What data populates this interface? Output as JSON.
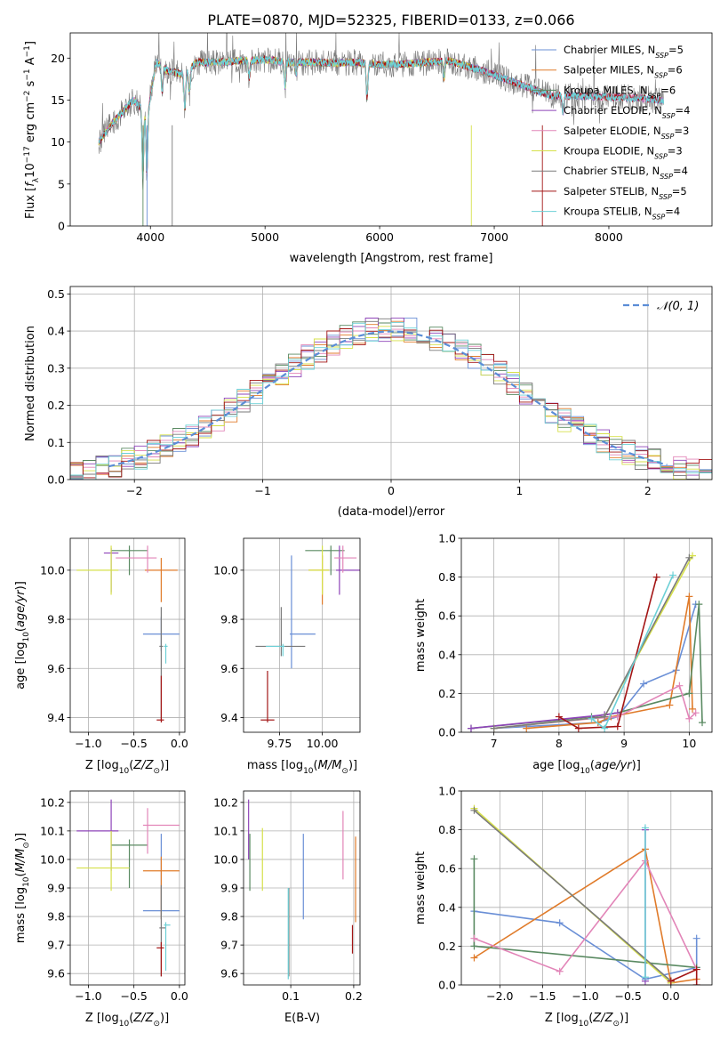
{
  "figure": {
    "title": "PLATE=0870, MJD=52325, FIBERID=0133, z=0.066"
  },
  "model_colors": [
    "#6a8fd6",
    "#e07b2a",
    "#5a8a62",
    "#8e44b8",
    "#e285b8",
    "#d6e04a",
    "#7a7a7a",
    "#a31515",
    "#6cd0d6"
  ],
  "model_legend_labels": [
    {
      "base": "Chabrier MILES, N",
      "sub": "SSP",
      "tail": "=5"
    },
    {
      "base": "Salpeter MILES, N",
      "sub": "SSP",
      "tail": "=6"
    },
    {
      "base": "Kroupa MILES, N",
      "sub": "SSP",
      "tail": "=6"
    },
    {
      "base": "Chabrier ELODIE, N",
      "sub": "SSP",
      "tail": "=4"
    },
    {
      "base": "Salpeter ELODIE, N",
      "sub": "SSP",
      "tail": "=3"
    },
    {
      "base": "Kroupa ELODIE, N",
      "sub": "SSP",
      "tail": "=3"
    },
    {
      "base": "Chabrier STELIB, N",
      "sub": "SSP",
      "tail": "=4"
    },
    {
      "base": "Salpeter STELIB, N",
      "sub": "SSP",
      "tail": "=5"
    },
    {
      "base": "Kroupa STELIB, N",
      "sub": "SSP",
      "tail": "=4"
    }
  ],
  "chart_data": [
    {
      "id": "spectrum",
      "type": "line",
      "xlabel": "wavelength [Angstrom, rest frame]",
      "ylabel": "Flux [f_λ 10^-17 erg cm^-2 s^-1 A^-1]",
      "xlim": [
        3300,
        8900
      ],
      "ylim": [
        0,
        23
      ],
      "xticks": [
        4000,
        5000,
        6000,
        7000,
        8000
      ],
      "yticks": [
        0,
        5,
        10,
        15,
        20
      ],
      "grid": false,
      "legend": "upper right",
      "continuum": {
        "x": [
          3550,
          3650,
          3750,
          3850,
          3930,
          3970,
          4050,
          4150,
          4300,
          4400,
          4600,
          4800,
          5000,
          5200,
          5400,
          5600,
          5800,
          6000,
          6200,
          6400,
          6600,
          6700,
          6800,
          6900,
          7000,
          7100,
          7200,
          7300,
          7400,
          7500,
          7700,
          7900,
          8100,
          8300,
          8450
        ],
        "y": [
          10,
          12,
          13.5,
          15,
          14,
          13,
          19.5,
          18.5,
          18,
          19.5,
          19.5,
          19.7,
          19.8,
          19.5,
          19.5,
          19.4,
          19.5,
          19.2,
          19.3,
          19.5,
          19.7,
          19.3,
          18.9,
          18.5,
          18.0,
          17.5,
          17.0,
          16.5,
          16.0,
          15.5,
          15.5,
          15.4,
          15.3,
          15.2,
          15.0
        ]
      },
      "absorption_features": [
        {
          "x": 3934,
          "depth": 8
        },
        {
          "x": 3969,
          "depth": 7
        },
        {
          "x": 4102,
          "depth": 3
        },
        {
          "x": 4300,
          "depth": 4
        },
        {
          "x": 4340,
          "depth": 3
        },
        {
          "x": 4861,
          "depth": 2
        },
        {
          "x": 5175,
          "depth": 3
        },
        {
          "x": 5270,
          "depth": 1.5
        },
        {
          "x": 5890,
          "depth": 4
        },
        {
          "x": 6563,
          "depth": 2
        },
        {
          "x": 7600,
          "depth": 2
        }
      ]
    },
    {
      "id": "residual_hist",
      "type": "histogram",
      "xlabel": "(data-model)/error",
      "ylabel": "Normed distribution",
      "xlim": [
        -2.5,
        2.5
      ],
      "ylim": [
        0,
        0.52
      ],
      "xticks": [
        -2,
        -1,
        0,
        1,
        2
      ],
      "yticks": [
        0.0,
        0.1,
        0.2,
        0.3,
        0.4,
        0.5
      ],
      "grid": true,
      "legend": "upper right",
      "reference_curve": {
        "name": "𝒩(0, 1)",
        "mu": 0,
        "sigma": 1
      },
      "bin_width": 0.1
    },
    {
      "id": "age_vs_Z",
      "type": "errorbar",
      "xlabel": "Z [log10(Z/Z⊙)]",
      "ylabel": "age [log10(age/yr)]",
      "xlim": [
        -1.2,
        0.06
      ],
      "ylim": [
        9.34,
        10.13
      ],
      "xticks": [
        -1.0,
        -0.5,
        0.0
      ],
      "yticks": [
        9.4,
        9.6,
        9.8,
        10.0
      ],
      "grid": true,
      "points": [
        {
          "x": -0.2,
          "xerr": [
            0.2,
            0.2
          ],
          "y": 9.74,
          "yerr": [
            0.07,
            0.07
          ]
        },
        {
          "x": -0.2,
          "xerr": [
            0.18,
            0.18
          ],
          "y": 10.0,
          "yerr": [
            0.13,
            0.05
          ]
        },
        {
          "x": -0.55,
          "xerr": [
            0.2,
            0.2
          ],
          "y": 10.08,
          "yerr": [
            0.1,
            0.02
          ]
        },
        {
          "x": -0.75,
          "xerr": [
            0.08,
            0.08
          ],
          "y": 10.07,
          "yerr": [
            0.16,
            0.02
          ]
        },
        {
          "x": -0.35,
          "xerr": [
            0.35,
            0.1
          ],
          "y": 10.05,
          "yerr": [
            0.06,
            0.05
          ]
        },
        {
          "x": -0.75,
          "xerr": [
            0.38,
            0.08
          ],
          "y": 10.0,
          "yerr": [
            0.1,
            0.1
          ]
        },
        {
          "x": -0.2,
          "xerr": [
            0.02,
            0.02
          ],
          "y": 9.69,
          "yerr": [
            0.3,
            0.16
          ]
        },
        {
          "x": -0.2,
          "xerr": [
            0.05,
            0.03
          ],
          "y": 9.39,
          "yerr": [
            0.01,
            0.18
          ]
        },
        {
          "x": -0.15,
          "xerr": [
            0.02,
            0.02
          ],
          "y": 9.69,
          "yerr": [
            0.07,
            0.01
          ]
        }
      ]
    },
    {
      "id": "age_vs_mass",
      "type": "errorbar",
      "xlabel": "mass [log10(M/M⊙)]",
      "ylabel": "",
      "xlim": [
        9.54,
        10.22
      ],
      "ylim": [
        9.34,
        10.13
      ],
      "xticks": [
        9.75,
        10.0
      ],
      "yticks": [
        9.4,
        9.6,
        9.8,
        10.0
      ],
      "grid": true,
      "points": [
        {
          "x": 9.82,
          "xerr": [
            0.01,
            0.14
          ],
          "y": 9.74,
          "yerr": [
            0.14,
            0.32
          ]
        },
        {
          "x": 10.0,
          "xerr": [
            0.08,
            0.04
          ],
          "y": 10.0,
          "yerr": [
            0.14,
            0.06
          ]
        },
        {
          "x": 10.05,
          "xerr": [
            0.15,
            0.08
          ],
          "y": 10.08,
          "yerr": [
            0.1,
            0.02
          ]
        },
        {
          "x": 10.1,
          "xerr": [
            0.02,
            0.12
          ],
          "y": 10.0,
          "yerr": [
            0.1,
            0.1
          ]
        },
        {
          "x": 10.12,
          "xerr": [
            0.05,
            0.08
          ],
          "y": 10.05,
          "yerr": [
            0.06,
            0.05
          ]
        },
        {
          "x": 10.0,
          "xerr": [
            0.08,
            0.04
          ],
          "y": 10.0,
          "yerr": [
            0.1,
            0.1
          ]
        },
        {
          "x": 9.76,
          "xerr": [
            0.15,
            0.14
          ],
          "y": 9.69,
          "yerr": [
            0.04,
            0.16
          ]
        },
        {
          "x": 9.68,
          "xerr": [
            0.04,
            0.04
          ],
          "y": 9.39,
          "yerr": [
            0.01,
            0.2
          ]
        },
        {
          "x": 9.77,
          "xerr": [
            0.1,
            0.01
          ],
          "y": 9.69,
          "yerr": [
            0.04,
            0.01
          ]
        }
      ]
    },
    {
      "id": "weight_vs_age",
      "type": "line",
      "xlabel": "age [log10(age/yr)]",
      "ylabel": "mass weight",
      "xlim": [
        6.5,
        10.35
      ],
      "ylim": [
        0,
        1.0
      ],
      "xticks": [
        7,
        8,
        9,
        10
      ],
      "yticks": [
        0.0,
        0.2,
        0.4,
        0.6,
        0.8,
        1.0
      ],
      "grid": true,
      "series": [
        {
          "x": [
            7.0,
            8.6,
            8.9,
            9.3,
            9.8,
            10.1
          ],
          "y": [
            0.02,
            0.05,
            0.08,
            0.25,
            0.32,
            0.66
          ]
        },
        {
          "x": [
            7.5,
            8.6,
            8.8,
            9.7,
            10.0,
            10.05
          ],
          "y": [
            0.02,
            0.05,
            0.08,
            0.14,
            0.7,
            0.12
          ]
        },
        {
          "x": [
            6.65,
            8.5,
            8.9,
            10.0,
            10.15,
            10.2
          ],
          "y": [
            0.02,
            0.08,
            0.1,
            0.2,
            0.66,
            0.05
          ]
        },
        {
          "x": [
            6.65,
            8.7,
            8.9
          ],
          "y": [
            0.02,
            0.09,
            0.1
          ]
        },
        {
          "x": [
            7.0,
            8.5,
            8.9,
            9.85,
            10.0,
            10.1
          ],
          "y": [
            0.02,
            0.07,
            0.08,
            0.24,
            0.07,
            0.1
          ]
        },
        {
          "x": [
            7.0,
            8.7,
            10.05
          ],
          "y": [
            0.02,
            0.08,
            0.91
          ]
        },
        {
          "x": [
            7.0,
            8.7,
            10.0
          ],
          "y": [
            0.02,
            0.08,
            0.9
          ]
        },
        {
          "x": [
            8.0,
            8.3,
            8.9,
            9.5
          ],
          "y": [
            0.08,
            0.02,
            0.03,
            0.8
          ]
        },
        {
          "x": [
            8.5,
            8.7,
            9.75
          ],
          "y": [
            0.07,
            0.02,
            0.81
          ]
        }
      ]
    },
    {
      "id": "mass_vs_Z",
      "type": "errorbar",
      "xlabel": "Z [log10(Z/Z⊙)]",
      "ylabel": "mass [log10(M/M⊙)]",
      "xlim": [
        -1.2,
        0.06
      ],
      "ylim": [
        9.56,
        10.24
      ],
      "xticks": [
        -1.0,
        -0.5,
        0.0
      ],
      "yticks": [
        9.6,
        9.7,
        9.8,
        9.9,
        10.0,
        10.1,
        10.2
      ],
      "grid": true,
      "points": [
        {
          "x": -0.2,
          "xerr": [
            0.2,
            0.2
          ],
          "y": 9.82,
          "yerr": [
            0.03,
            0.27
          ]
        },
        {
          "x": -0.2,
          "xerr": [
            0.2,
            0.2
          ],
          "y": 9.96,
          "yerr": [
            0.17,
            0.05
          ]
        },
        {
          "x": -0.55,
          "xerr": [
            0.2,
            0.2
          ],
          "y": 10.05,
          "yerr": [
            0.15,
            0.02
          ]
        },
        {
          "x": -0.75,
          "xerr": [
            0.38,
            0.08
          ],
          "y": 10.1,
          "yerr": [
            0.14,
            0.11
          ]
        },
        {
          "x": -0.35,
          "xerr": [
            0.05,
            0.35
          ],
          "y": 10.12,
          "yerr": [
            0.1,
            0.06
          ]
        },
        {
          "x": -0.75,
          "xerr": [
            0.38,
            0.2
          ],
          "y": 9.97,
          "yerr": [
            0.08,
            0.13
          ]
        },
        {
          "x": -0.2,
          "xerr": [
            0.02,
            0.05
          ],
          "y": 9.76,
          "yerr": [
            0.17,
            0.15
          ]
        },
        {
          "x": -0.2,
          "xerr": [
            0.05,
            0.03
          ],
          "y": 9.69,
          "yerr": [
            0.1,
            0.02
          ]
        },
        {
          "x": -0.15,
          "xerr": [
            0.02,
            0.05
          ],
          "y": 9.77,
          "yerr": [
            0.16,
            0.01
          ]
        }
      ]
    },
    {
      "id": "mass_vs_ebv",
      "type": "errorbar",
      "xlabel": "E(B-V)",
      "ylabel": "",
      "xlim": [
        0.025,
        0.21
      ],
      "ylim": [
        9.56,
        10.24
      ],
      "xticks": [
        0.1,
        0.2
      ],
      "yticks": [
        9.6,
        9.7,
        9.8,
        9.9,
        10.0,
        10.1,
        10.2
      ],
      "grid": true,
      "points": [
        {
          "x": 0.12,
          "xerr": [
            0,
            0
          ],
          "y": 9.94,
          "yerr": [
            0.15,
            0.15
          ]
        },
        {
          "x": 0.203,
          "xerr": [
            0,
            0
          ],
          "y": 9.93,
          "yerr": [
            0.15,
            0.15
          ]
        },
        {
          "x": 0.035,
          "xerr": [
            0,
            0
          ],
          "y": 9.99,
          "yerr": [
            0.1,
            0.1
          ]
        },
        {
          "x": 0.033,
          "xerr": [
            0,
            0
          ],
          "y": 10.1,
          "yerr": [
            0.1,
            0.11
          ]
        },
        {
          "x": 0.183,
          "xerr": [
            0,
            0
          ],
          "y": 10.05,
          "yerr": [
            0.12,
            0.12
          ]
        },
        {
          "x": 0.055,
          "xerr": [
            0,
            0
          ],
          "y": 10.0,
          "yerr": [
            0.11,
            0.11
          ]
        },
        {
          "x": 0.097,
          "xerr": [
            0,
            0
          ],
          "y": 9.75,
          "yerr": [
            0.16,
            0.15
          ]
        },
        {
          "x": 0.198,
          "xerr": [
            0,
            0
          ],
          "y": 9.72,
          "yerr": [
            0.05,
            0.05
          ]
        },
        {
          "x": 0.096,
          "xerr": [
            0,
            0
          ],
          "y": 9.74,
          "yerr": [
            0.16,
            0.16
          ]
        }
      ]
    },
    {
      "id": "weight_vs_Z",
      "type": "line",
      "xlabel": "Z [log10(Z/Z⊙)]",
      "ylabel": "mass weight",
      "xlim": [
        -2.45,
        0.48
      ],
      "ylim": [
        0,
        1.0
      ],
      "xticks": [
        -2.0,
        -1.5,
        -1.0,
        -0.5,
        0.0
      ],
      "yticks": [
        0.0,
        0.2,
        0.4,
        0.6,
        0.8,
        1.0
      ],
      "grid": true,
      "series": [
        {
          "x": [
            -2.3,
            -1.3,
            -0.3,
            0.3,
            0.3
          ],
          "y": [
            0.38,
            0.32,
            0.03,
            0.09,
            0.24
          ]
        },
        {
          "x": [
            -2.3,
            -0.3,
            0.0,
            0.3
          ],
          "y": [
            0.14,
            0.7,
            0.01,
            0.03
          ]
        },
        {
          "x": [
            -2.3,
            -2.3,
            0.3
          ],
          "y": [
            0.65,
            0.2,
            0.09
          ]
        },
        {
          "x": [
            -0.3,
            -0.3
          ],
          "y": [
            0.02,
            0.8
          ]
        },
        {
          "x": [
            -2.3,
            -1.3,
            -0.3,
            0.3
          ],
          "y": [
            0.24,
            0.07,
            0.64,
            0.08
          ]
        },
        {
          "x": [
            -2.3,
            0.0
          ],
          "y": [
            0.91,
            0.01
          ]
        },
        {
          "x": [
            -2.3,
            0.0
          ],
          "y": [
            0.9,
            0.02
          ]
        },
        {
          "x": [
            0.0,
            0.3,
            0.3
          ],
          "y": [
            0.02,
            0.08,
            0.0
          ]
        },
        {
          "x": [
            -0.3,
            -0.3
          ],
          "y": [
            0.04,
            0.81
          ]
        }
      ]
    }
  ]
}
